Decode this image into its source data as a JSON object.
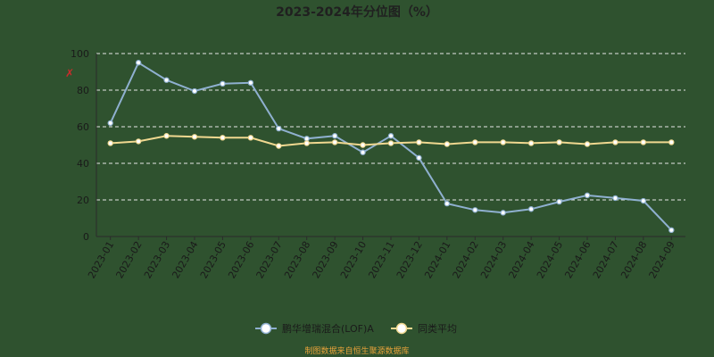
{
  "chart_data": {
    "type": "line",
    "title": "2023-2024年分位图（%）",
    "y_marker": "✗",
    "ylim": [
      0,
      100
    ],
    "yticks": [
      0,
      20,
      40,
      60,
      80,
      100
    ],
    "grid": true,
    "legend_position": "bottom",
    "categories": [
      "2023-01",
      "2023-02",
      "2023-03",
      "2023-04",
      "2023-05",
      "2023-06",
      "2023-07",
      "2023-08",
      "2023-09",
      "2023-10",
      "2023-11",
      "2023-12",
      "2024-01",
      "2024-02",
      "2024-03",
      "2024-04",
      "2024-05",
      "2024-06",
      "2024-07",
      "2024-08",
      "2024-09"
    ],
    "series": [
      {
        "name": "鹏华增瑞混合(LOF)A",
        "color": "#8fb0d0",
        "values": [
          62,
          95,
          85.5,
          79.5,
          83.5,
          84,
          59,
          53.5,
          55,
          46,
          55,
          43,
          18,
          14.5,
          13,
          15,
          19,
          22.5,
          21,
          19.5,
          3.5
        ]
      },
      {
        "name": "同类平均",
        "color": "#f0d890",
        "values": [
          51,
          52,
          55,
          54.5,
          54,
          54,
          49.5,
          51,
          51.5,
          50,
          51,
          51.5,
          50.5,
          51.5,
          51.5,
          51,
          51.5,
          50.5,
          51.5,
          51.5,
          51.5
        ]
      }
    ]
  },
  "watermark": "制图数据来自恒生聚源数据库",
  "colors": {
    "axis": "#2b2b2b",
    "grid": "#e6e6e6",
    "watermark": "#e8a33a",
    "marker": "#cc2b2b"
  }
}
